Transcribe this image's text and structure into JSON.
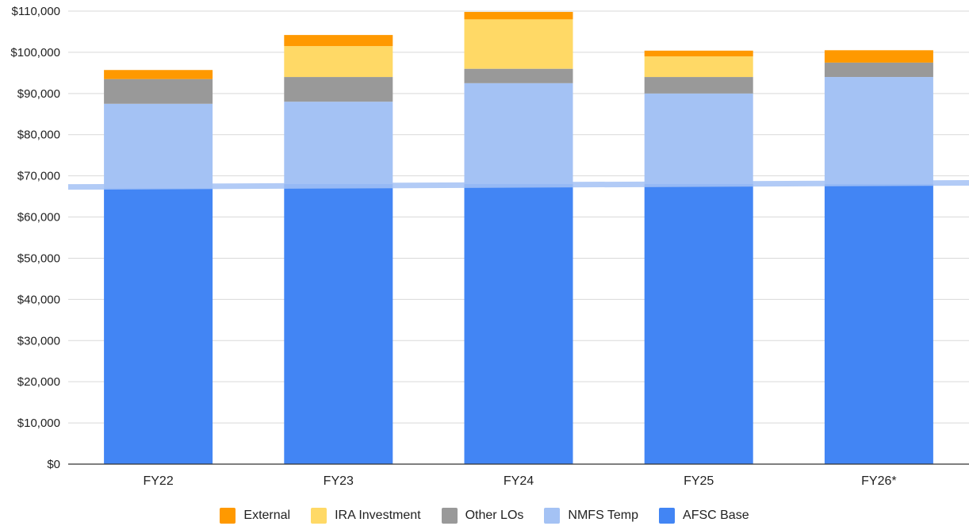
{
  "chart_data": {
    "type": "bar",
    "stacked": true,
    "title": "",
    "xlabel": "",
    "ylabel": "",
    "categories": [
      "FY22",
      "FY23",
      "FY24",
      "FY25",
      "FY26*"
    ],
    "ylim": [
      0,
      110000
    ],
    "y_ticks": [
      0,
      10000,
      20000,
      30000,
      40000,
      50000,
      60000,
      70000,
      80000,
      90000,
      100000,
      110000
    ],
    "y_tick_labels": [
      "$0",
      "$10,000",
      "$20,000",
      "$30,000",
      "$40,000",
      "$50,000",
      "$60,000",
      "$70,000",
      "$80,000",
      "$90,000",
      "$100,000",
      "$110,000"
    ],
    "grid": true,
    "legend_position": "bottom",
    "series": [
      {
        "name": "AFSC Base",
        "color": "#4285f4",
        "values": [
          67000,
          68000,
          68000,
          68000,
          68000
        ]
      },
      {
        "name": "NMFS Temp",
        "color": "#a4c2f4",
        "values": [
          20500,
          20000,
          24500,
          22000,
          26000
        ]
      },
      {
        "name": "Other LOs",
        "color": "#999999",
        "values": [
          6000,
          6000,
          3500,
          4000,
          3500
        ]
      },
      {
        "name": "IRA Investment",
        "color": "#ffd966",
        "values": [
          0,
          7500,
          12000,
          5000,
          0
        ]
      },
      {
        "name": "External",
        "color": "#ff9900",
        "values": [
          2200,
          2700,
          1800,
          1400,
          3000
        ]
      }
    ],
    "reference_line": {
      "color": "#a4c2f4",
      "y_start": 67300,
      "y_end": 68300
    },
    "legend_order": [
      "External",
      "IRA Investment",
      "Other LOs",
      "NMFS Temp",
      "AFSC Base"
    ]
  }
}
